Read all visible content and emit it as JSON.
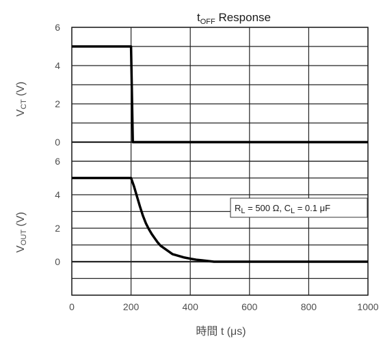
{
  "chart_data": {
    "type": "line",
    "title": {
      "main": "t",
      "sub": "OFF",
      "rest": " Response"
    },
    "xlabel": "時間 t (μs)",
    "xlim": [
      0,
      1000
    ],
    "x_ticks": [
      "0",
      "200",
      "400",
      "600",
      "800",
      "1000"
    ],
    "grid": true,
    "panels": [
      {
        "ylabel": {
          "main": "V",
          "sub": "CT",
          "rest": " (V)"
        },
        "ylim": [
          -1,
          6
        ],
        "y_ticks": [
          "0",
          "2",
          "4",
          "6"
        ],
        "series": [
          {
            "x": [
              0,
              200,
              203,
              206,
              1000
            ],
            "y": [
              5,
              5,
              2.5,
              0,
              0
            ]
          }
        ]
      },
      {
        "ylabel": {
          "main": "V",
          "sub": "OUT",
          "rest": " (V)"
        },
        "ylim": [
          -2,
          6
        ],
        "y_ticks": [
          "0",
          "2",
          "4",
          "6"
        ],
        "series": [
          {
            "x": [
              0,
              200,
              210,
              220,
              230,
              240,
              250,
              260,
              270,
              280,
              290,
              300,
              320,
              340,
              360,
              380,
              400,
              420,
              440,
              460,
              480,
              1000
            ],
            "y": [
              5,
              5,
              4.5,
              3.9,
              3.3,
              2.75,
              2.3,
              1.95,
              1.65,
              1.4,
              1.15,
              0.95,
              0.7,
              0.45,
              0.35,
              0.25,
              0.18,
              0.12,
              0.08,
              0.04,
              0,
              0
            ]
          }
        ]
      }
    ],
    "annotation": {
      "r": "R",
      "r_sub": "L",
      "r_val": " = 500 Ω, ",
      "c": "C",
      "c_sub": "L",
      "c_val": " = 0.1 μF"
    }
  }
}
